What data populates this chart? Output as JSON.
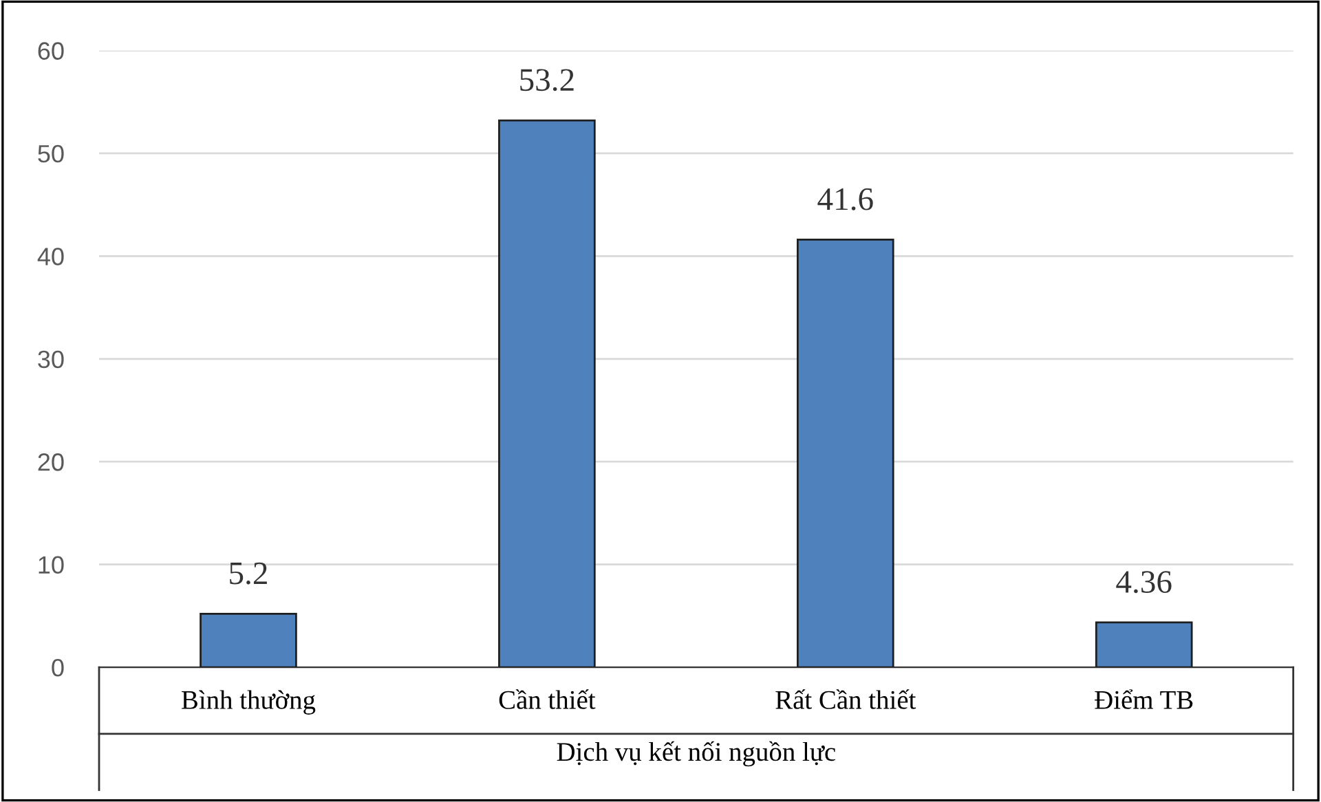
{
  "chart_data": {
    "type": "bar",
    "xlabel": "Dịch vụ kết nối nguồn lực",
    "categories": [
      "Bình thường",
      "Cần thiết",
      "Rất Cần thiết",
      "Điểm TB"
    ],
    "values": [
      5.2,
      53.2,
      41.6,
      4.36
    ],
    "color": "#4f81bd",
    "ylim": [
      0,
      60
    ],
    "yticks": [
      0,
      10,
      20,
      30,
      40,
      50,
      60
    ],
    "grid": "y",
    "data_labels": true
  }
}
